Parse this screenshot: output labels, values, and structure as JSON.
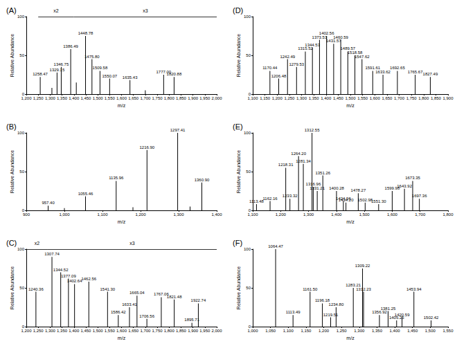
{
  "chart_data": [
    {
      "type": "bar",
      "title": "(A)",
      "x_label": "m/z",
      "y_label": "Relative Abundance",
      "color": "#000000",
      "grid": false,
      "data_labels": true,
      "x": [
        1258.47,
        1307.5,
        1329.15,
        1346.75,
        1386.49,
        1410.0,
        1448.78,
        1475.8,
        1509.58,
        1550.07,
        1635.43,
        1700.0,
        1777.0,
        1820.88
      ],
      "values": [
        22,
        8,
        28,
        35,
        58,
        15,
        75,
        45,
        30,
        20,
        18,
        5,
        25,
        22
      ],
      "labels": [
        "1258.47",
        null,
        "1329.15",
        "1346.75",
        "1386.49",
        null,
        "1448.78",
        "1475.80",
        "1509.58",
        "1550.07",
        "1635.43",
        null,
        "1777.00",
        "1820.88"
      ],
      "xlim": [
        1200,
        2000
      ],
      "xticks": [
        1200,
        1250,
        1300,
        1350,
        1400,
        1450,
        1500,
        1550,
        1600,
        1650,
        1700,
        1750,
        1800,
        1850,
        1900,
        1950,
        2000
      ],
      "ylim": [
        0,
        100
      ],
      "yticks": [
        0,
        50,
        100
      ],
      "annotations": [
        {
          "text": "x2",
          "x1": 1250,
          "x2": 1400
        },
        {
          "text": "x3",
          "x1": 1400,
          "x2": 2000
        }
      ]
    },
    {
      "type": "bar",
      "title": "(B)",
      "x_label": "m/z",
      "y_label": "Relative Abundance",
      "color": "#000000",
      "grid": false,
      "data_labels": true,
      "x": [
        957.4,
        1000.0,
        1055.46,
        1135.96,
        1180.0,
        1216.9,
        1297.41,
        1330.0,
        1360.9
      ],
      "values": [
        6,
        3,
        18,
        38,
        4,
        78,
        100,
        5,
        36
      ],
      "labels": [
        "957.40",
        null,
        "1055.46",
        "1135.96",
        null,
        "1216.90",
        "1297.41",
        null,
        "1360.90"
      ],
      "xlim": [
        900,
        1400
      ],
      "xticks": [
        900,
        1000,
        1100,
        1200,
        1300,
        1400
      ],
      "ylim": [
        0,
        100
      ],
      "yticks": [
        0,
        50,
        100
      ]
    },
    {
      "type": "bar",
      "title": "(C)",
      "x_label": "m/z",
      "y_label": "Relative Abundance",
      "color": "#000000",
      "grid": false,
      "data_labels": true,
      "x": [
        1240.36,
        1307.74,
        1344.52,
        1377.09,
        1402.64,
        1462.56,
        1541.3,
        1586.42,
        1633.41,
        1665.04,
        1706.56,
        1767.06,
        1821.48,
        1895.71,
        1922.74
      ],
      "values": [
        45,
        90,
        70,
        62,
        55,
        58,
        45,
        15,
        25,
        40,
        10,
        38,
        35,
        5,
        30
      ],
      "labels": [
        "1240.36",
        "1307.74",
        "1344.52",
        "1377.09",
        "1402.64",
        "1462.56",
        "1541.30",
        "1586.42",
        "1633.41",
        "1665.04",
        "1706.56",
        "1767.06",
        "1821.48",
        "1895.71",
        "1922.74"
      ],
      "xlim": [
        1200,
        2000
      ],
      "xticks": [
        1200,
        1250,
        1300,
        1350,
        1400,
        1450,
        1500,
        1550,
        1600,
        1650,
        1700,
        1750,
        1800,
        1850,
        1900,
        1950,
        2000
      ],
      "ylim": [
        0,
        100
      ],
      "yticks": [
        0,
        50,
        100
      ],
      "annotations": [
        {
          "text": "x2",
          "x1": 1200,
          "x2": 1290
        },
        {
          "text": "x3",
          "x1": 1290,
          "x2": 2000
        }
      ]
    },
    {
      "type": "bar",
      "title": "(D)",
      "x_label": "m/z",
      "y_label": "Relative Abundance",
      "color": "#000000",
      "grid": false,
      "data_labels": true,
      "x": [
        1170.44,
        1206.48,
        1242.49,
        1279.53,
        1315.52,
        1344.53,
        1373.53,
        1402.56,
        1431.57,
        1460.59,
        1489.57,
        1518.58,
        1547.62,
        1591.61,
        1633.62,
        1692.65,
        1765.67,
        1827.49
      ],
      "values": [
        30,
        20,
        45,
        35,
        55,
        60,
        70,
        75,
        65,
        70,
        55,
        50,
        45,
        30,
        25,
        30,
        25,
        22
      ],
      "labels": [
        "1170.44",
        "1206.48",
        "1242.49",
        "1279.53",
        "1315.52",
        "1344.53",
        "1373.53",
        "1402.56",
        "1431.57",
        "1460.59",
        "1489.57",
        "1518.58",
        "1547.62",
        "1591.61",
        "1633.62",
        "1692.65",
        "1765.67",
        "1827.49"
      ],
      "xlim": [
        1100,
        1900
      ],
      "xticks": [
        1100,
        1150,
        1200,
        1250,
        1300,
        1350,
        1400,
        1450,
        1500,
        1550,
        1600,
        1650,
        1700,
        1750,
        1800,
        1850,
        1900
      ],
      "ylim": [
        0,
        100
      ],
      "yticks": [
        0,
        50,
        100
      ]
    },
    {
      "type": "bar",
      "title": "(E)",
      "x_label": "m/z",
      "y_label": "Relative Abundance",
      "color": "#000000",
      "grid": false,
      "data_labels": true,
      "x": [
        1113.48,
        1162.16,
        1218.31,
        1233.32,
        1264.2,
        1281.34,
        1312.55,
        1316.96,
        1331.21,
        1351.26,
        1400.28,
        1424.96,
        1434.2,
        1478.27,
        1502.98,
        1551.3,
        1599.98,
        1643.92,
        1673.35,
        1697.36
      ],
      "values": [
        8,
        12,
        55,
        15,
        70,
        60,
        100,
        30,
        25,
        45,
        25,
        12,
        10,
        22,
        10,
        8,
        25,
        28,
        38,
        15
      ],
      "labels": [
        "1113.48",
        "1162.16",
        "1218.31",
        "1233.32",
        "1264.20",
        "1281.34",
        "1312.55",
        "1316.96",
        "1331.21",
        "1351.26",
        "1400.28",
        "1424.96",
        "1434.20",
        "1478.27",
        "1502.98",
        "1551.30",
        "1599.98",
        "1643.92",
        "1673.35",
        "1697.36"
      ],
      "xlim": [
        1100,
        1800
      ],
      "xticks": [
        1100,
        1200,
        1300,
        1400,
        1500,
        1600,
        1700,
        1800
      ],
      "ylim": [
        0,
        100
      ],
      "yticks": [
        0,
        50,
        100
      ]
    },
    {
      "type": "bar",
      "title": "(F)",
      "x_label": "m/z",
      "y_label": "Relative Abundance",
      "color": "#000000",
      "grid": false,
      "data_labels": true,
      "x": [
        1064.47,
        1113.49,
        1161.5,
        1196.18,
        1219.51,
        1234.8,
        1283.21,
        1309.22,
        1312.23,
        1356.92,
        1381.25,
        1405.25,
        1420.59,
        1453.94,
        1502.42
      ],
      "values": [
        100,
        15,
        45,
        30,
        12,
        25,
        50,
        75,
        45,
        15,
        20,
        8,
        12,
        45,
        8
      ],
      "labels": [
        "1064.47",
        "1113.49",
        "1161.50",
        "1196.18",
        "1219.51",
        "1234.80",
        "1283.21",
        "1309.22",
        "1312.23",
        "1356.92",
        "1381.25",
        "1405.25",
        "1420.59",
        "1453.94",
        "1502.42"
      ],
      "xlim": [
        1000,
        1550
      ],
      "xticks": [
        1000,
        1050,
        1100,
        1150,
        1200,
        1250,
        1300,
        1350,
        1400,
        1450,
        1500,
        1550
      ],
      "ylim": [
        0,
        100
      ],
      "yticks": [
        0,
        50,
        100
      ]
    }
  ]
}
